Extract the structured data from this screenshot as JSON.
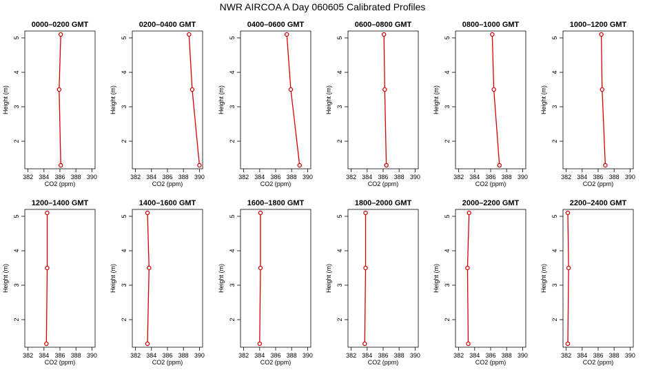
{
  "figure": {
    "title": "NWR AIRCOA A  Day 060605  Calibrated Profiles"
  },
  "colors": {
    "series": "#d40000",
    "axis": "#000000",
    "background": "#ffffff"
  },
  "chart_data": [
    {
      "type": "line",
      "title": "0000–0200 GMT",
      "xlabel": "CO2 (ppm)",
      "ylabel": "Height (m)",
      "xlim": [
        381.6,
        390.4
      ],
      "ylim": [
        1.2,
        5.2
      ],
      "xticks": [
        382,
        384,
        386,
        388,
        390
      ],
      "yticks": [
        2,
        3,
        4,
        5
      ],
      "series": [
        {
          "x": [
            386.1,
            385.9,
            386.1
          ],
          "y": [
            1.3,
            3.5,
            5.1
          ]
        }
      ]
    },
    {
      "type": "line",
      "title": "0200–0400 GMT",
      "xlabel": "CO2 (ppm)",
      "ylabel": "Height (m)",
      "xlim": [
        381.6,
        390.4
      ],
      "ylim": [
        1.2,
        5.2
      ],
      "xticks": [
        382,
        384,
        386,
        388,
        390
      ],
      "yticks": [
        2,
        3,
        4,
        5
      ],
      "series": [
        {
          "x": [
            390.0,
            389.1,
            388.7
          ],
          "y": [
            1.3,
            3.5,
            5.1
          ]
        }
      ]
    },
    {
      "type": "line",
      "title": "0400–0600 GMT",
      "xlabel": "CO2 (ppm)",
      "ylabel": "Height (m)",
      "xlim": [
        381.6,
        390.4
      ],
      "ylim": [
        1.2,
        5.2
      ],
      "xticks": [
        382,
        384,
        386,
        388,
        390
      ],
      "yticks": [
        2,
        3,
        4,
        5
      ],
      "series": [
        {
          "x": [
            389.0,
            387.9,
            387.4
          ],
          "y": [
            1.3,
            3.5,
            5.1
          ]
        }
      ]
    },
    {
      "type": "line",
      "title": "0600–0800 GMT",
      "xlabel": "CO2 (ppm)",
      "ylabel": "Height (m)",
      "xlim": [
        381.6,
        390.4
      ],
      "ylim": [
        1.2,
        5.2
      ],
      "xticks": [
        382,
        384,
        386,
        388,
        390
      ],
      "yticks": [
        2,
        3,
        4,
        5
      ],
      "series": [
        {
          "x": [
            386.4,
            386.2,
            386.1
          ],
          "y": [
            1.3,
            3.5,
            5.1
          ]
        }
      ]
    },
    {
      "type": "line",
      "title": "0800–1000 GMT",
      "xlabel": "CO2 (ppm)",
      "ylabel": "Height (m)",
      "xlim": [
        381.6,
        390.4
      ],
      "ylim": [
        1.2,
        5.2
      ],
      "xticks": [
        382,
        384,
        386,
        388,
        390
      ],
      "yticks": [
        2,
        3,
        4,
        5
      ],
      "series": [
        {
          "x": [
            387.1,
            386.4,
            386.2
          ],
          "y": [
            1.3,
            3.5,
            5.1
          ]
        }
      ]
    },
    {
      "type": "line",
      "title": "1000–1200 GMT",
      "xlabel": "CO2 (ppm)",
      "ylabel": "Height (m)",
      "xlim": [
        381.6,
        390.4
      ],
      "ylim": [
        1.2,
        5.2
      ],
      "xticks": [
        382,
        384,
        386,
        388,
        390
      ],
      "yticks": [
        2,
        3,
        4,
        5
      ],
      "series": [
        {
          "x": [
            386.9,
            386.5,
            386.4
          ],
          "y": [
            1.3,
            3.5,
            5.1
          ]
        }
      ]
    },
    {
      "type": "line",
      "title": "1200–1400 GMT",
      "xlabel": "CO2 (ppm)",
      "ylabel": "Height (m)",
      "xlim": [
        381.6,
        390.4
      ],
      "ylim": [
        1.2,
        5.2
      ],
      "xticks": [
        382,
        384,
        386,
        388,
        390
      ],
      "yticks": [
        2,
        3,
        4,
        5
      ],
      "series": [
        {
          "x": [
            384.3,
            384.4,
            384.4
          ],
          "y": [
            1.3,
            3.5,
            5.1
          ]
        }
      ]
    },
    {
      "type": "line",
      "title": "1400–1600 GMT",
      "xlabel": "CO2 (ppm)",
      "ylabel": "Height (m)",
      "xlim": [
        381.6,
        390.4
      ],
      "ylim": [
        1.2,
        5.2
      ],
      "xticks": [
        382,
        384,
        386,
        388,
        390
      ],
      "yticks": [
        2,
        3,
        4,
        5
      ],
      "series": [
        {
          "x": [
            383.5,
            383.7,
            383.5
          ],
          "y": [
            1.3,
            3.5,
            5.1
          ]
        }
      ]
    },
    {
      "type": "line",
      "title": "1600–1800 GMT",
      "xlabel": "CO2 (ppm)",
      "ylabel": "Height (m)",
      "xlim": [
        381.6,
        390.4
      ],
      "ylim": [
        1.2,
        5.2
      ],
      "xticks": [
        382,
        384,
        386,
        388,
        390
      ],
      "yticks": [
        2,
        3,
        4,
        5
      ],
      "series": [
        {
          "x": [
            384.0,
            384.1,
            384.1
          ],
          "y": [
            1.3,
            3.5,
            5.1
          ]
        }
      ]
    },
    {
      "type": "line",
      "title": "1800–2000 GMT",
      "xlabel": "CO2 (ppm)",
      "ylabel": "Height (m)",
      "xlim": [
        381.6,
        390.4
      ],
      "ylim": [
        1.2,
        5.2
      ],
      "xticks": [
        382,
        384,
        386,
        388,
        390
      ],
      "yticks": [
        2,
        3,
        4,
        5
      ],
      "series": [
        {
          "x": [
            383.7,
            383.8,
            383.8
          ],
          "y": [
            1.3,
            3.5,
            5.1
          ]
        }
      ]
    },
    {
      "type": "line",
      "title": "2000–2200 GMT",
      "xlabel": "CO2 (ppm)",
      "ylabel": "Height (m)",
      "xlim": [
        381.6,
        390.4
      ],
      "ylim": [
        1.2,
        5.2
      ],
      "xticks": [
        382,
        384,
        386,
        388,
        390
      ],
      "yticks": [
        2,
        3,
        4,
        5
      ],
      "series": [
        {
          "x": [
            383.2,
            383.1,
            383.3
          ],
          "y": [
            1.3,
            3.5,
            5.1
          ]
        }
      ]
    },
    {
      "type": "line",
      "title": "2200–2400 GMT",
      "xlabel": "CO2 (ppm)",
      "ylabel": "Height (m)",
      "xlim": [
        381.6,
        390.4
      ],
      "ylim": [
        1.2,
        5.2
      ],
      "xticks": [
        382,
        384,
        386,
        388,
        390
      ],
      "yticks": [
        2,
        3,
        4,
        5
      ],
      "series": [
        {
          "x": [
            382.2,
            382.3,
            382.2
          ],
          "y": [
            1.3,
            3.5,
            5.1
          ]
        }
      ]
    }
  ]
}
